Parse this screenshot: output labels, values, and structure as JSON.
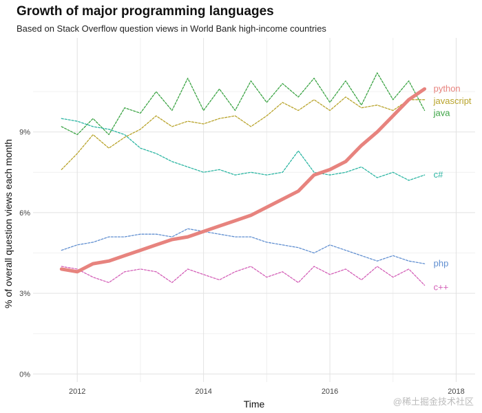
{
  "chart_data": {
    "type": "line",
    "title": "Growth of major programming languages",
    "subtitle": "Based on Stack Overflow question views in World Bank high-income countries",
    "xlabel": "Time",
    "ylabel": "% of overall question views each month",
    "xlim": [
      2011.3,
      2018.3
    ],
    "ylim": [
      -0.3,
      12.5
    ],
    "x_ticks": [
      2012,
      2014,
      2016,
      2018
    ],
    "y_ticks": [
      0,
      3,
      6,
      9
    ],
    "y_tick_labels": [
      "0%",
      "3%",
      "6%",
      "9%"
    ],
    "grid": true,
    "legend": "direct labels at line ends",
    "series": [
      {
        "name": "python",
        "color": "#e7837e",
        "dashed": false,
        "x": [
          2011.75,
          2012.0,
          2012.25,
          2012.5,
          2012.75,
          2013.0,
          2013.25,
          2013.5,
          2013.75,
          2014.0,
          2014.25,
          2014.5,
          2014.75,
          2015.0,
          2015.25,
          2015.5,
          2015.75,
          2016.0,
          2016.25,
          2016.5,
          2016.75,
          2017.0,
          2017.25,
          2017.5
        ],
        "values": [
          3.9,
          3.8,
          4.1,
          4.2,
          4.4,
          4.6,
          4.8,
          5.0,
          5.1,
          5.3,
          5.5,
          5.7,
          5.9,
          6.2,
          6.5,
          6.8,
          7.4,
          7.6,
          7.9,
          8.5,
          9.0,
          9.6,
          10.2,
          10.6
        ]
      },
      {
        "name": "javascript",
        "color": "#b8a32a",
        "dashed": true,
        "x": [
          2011.75,
          2012.0,
          2012.25,
          2012.5,
          2012.75,
          2013.0,
          2013.25,
          2013.5,
          2013.75,
          2014.0,
          2014.25,
          2014.5,
          2014.75,
          2015.0,
          2015.25,
          2015.5,
          2015.75,
          2016.0,
          2016.25,
          2016.5,
          2016.75,
          2017.0,
          2017.25,
          2017.5
        ],
        "values": [
          7.6,
          8.2,
          8.9,
          8.4,
          8.8,
          9.1,
          9.6,
          9.2,
          9.4,
          9.3,
          9.5,
          9.6,
          9.2,
          9.6,
          10.1,
          9.8,
          10.2,
          9.8,
          10.3,
          9.9,
          10.0,
          9.8,
          10.2,
          10.2
        ]
      },
      {
        "name": "java",
        "color": "#3aa343",
        "dashed": true,
        "x": [
          2011.75,
          2012.0,
          2012.25,
          2012.5,
          2012.75,
          2013.0,
          2013.25,
          2013.5,
          2013.75,
          2014.0,
          2014.25,
          2014.5,
          2014.75,
          2015.0,
          2015.25,
          2015.5,
          2015.75,
          2016.0,
          2016.25,
          2016.5,
          2016.75,
          2017.0,
          2017.25,
          2017.5
        ],
        "values": [
          9.2,
          8.9,
          9.5,
          8.9,
          9.9,
          9.7,
          10.5,
          9.8,
          11.0,
          9.8,
          10.6,
          9.8,
          10.9,
          10.1,
          10.8,
          10.3,
          11.0,
          10.1,
          10.9,
          10.0,
          11.2,
          10.2,
          10.9,
          9.8
        ]
      },
      {
        "name": "c#",
        "color": "#2bb5a2",
        "dashed": true,
        "x": [
          2011.75,
          2012.0,
          2012.25,
          2012.5,
          2012.75,
          2013.0,
          2013.25,
          2013.5,
          2013.75,
          2014.0,
          2014.25,
          2014.5,
          2014.75,
          2015.0,
          2015.25,
          2015.5,
          2015.75,
          2016.0,
          2016.25,
          2016.5,
          2016.75,
          2017.0,
          2017.25,
          2017.5
        ],
        "values": [
          9.5,
          9.4,
          9.2,
          9.1,
          8.9,
          8.4,
          8.2,
          7.9,
          7.7,
          7.5,
          7.6,
          7.4,
          7.5,
          7.4,
          7.5,
          8.3,
          7.5,
          7.4,
          7.5,
          7.7,
          7.3,
          7.5,
          7.2,
          7.4
        ]
      },
      {
        "name": "php",
        "color": "#5f8ed0",
        "dashed": true,
        "x": [
          2011.75,
          2012.0,
          2012.25,
          2012.5,
          2012.75,
          2013.0,
          2013.25,
          2013.5,
          2013.75,
          2014.0,
          2014.25,
          2014.5,
          2014.75,
          2015.0,
          2015.25,
          2015.5,
          2015.75,
          2016.0,
          2016.25,
          2016.5,
          2016.75,
          2017.0,
          2017.25,
          2017.5
        ],
        "values": [
          4.6,
          4.8,
          4.9,
          5.1,
          5.1,
          5.2,
          5.2,
          5.1,
          5.4,
          5.3,
          5.2,
          5.1,
          5.1,
          4.9,
          4.8,
          4.7,
          4.5,
          4.8,
          4.6,
          4.4,
          4.2,
          4.4,
          4.2,
          4.1
        ]
      },
      {
        "name": "c++",
        "color": "#d35fb7",
        "dashed": true,
        "x": [
          2011.75,
          2012.0,
          2012.25,
          2012.5,
          2012.75,
          2013.0,
          2013.25,
          2013.5,
          2013.75,
          2014.0,
          2014.25,
          2014.5,
          2014.75,
          2015.0,
          2015.25,
          2015.5,
          2015.75,
          2016.0,
          2016.25,
          2016.5,
          2016.75,
          2017.0,
          2017.25,
          2017.5
        ],
        "values": [
          4.0,
          3.9,
          3.6,
          3.4,
          3.8,
          3.9,
          3.8,
          3.4,
          3.9,
          3.7,
          3.5,
          3.8,
          4.0,
          3.6,
          3.8,
          3.4,
          4.0,
          3.7,
          3.9,
          3.5,
          4.0,
          3.6,
          3.9,
          3.3
        ]
      }
    ]
  },
  "watermark": "@稀土掘金技术社区"
}
